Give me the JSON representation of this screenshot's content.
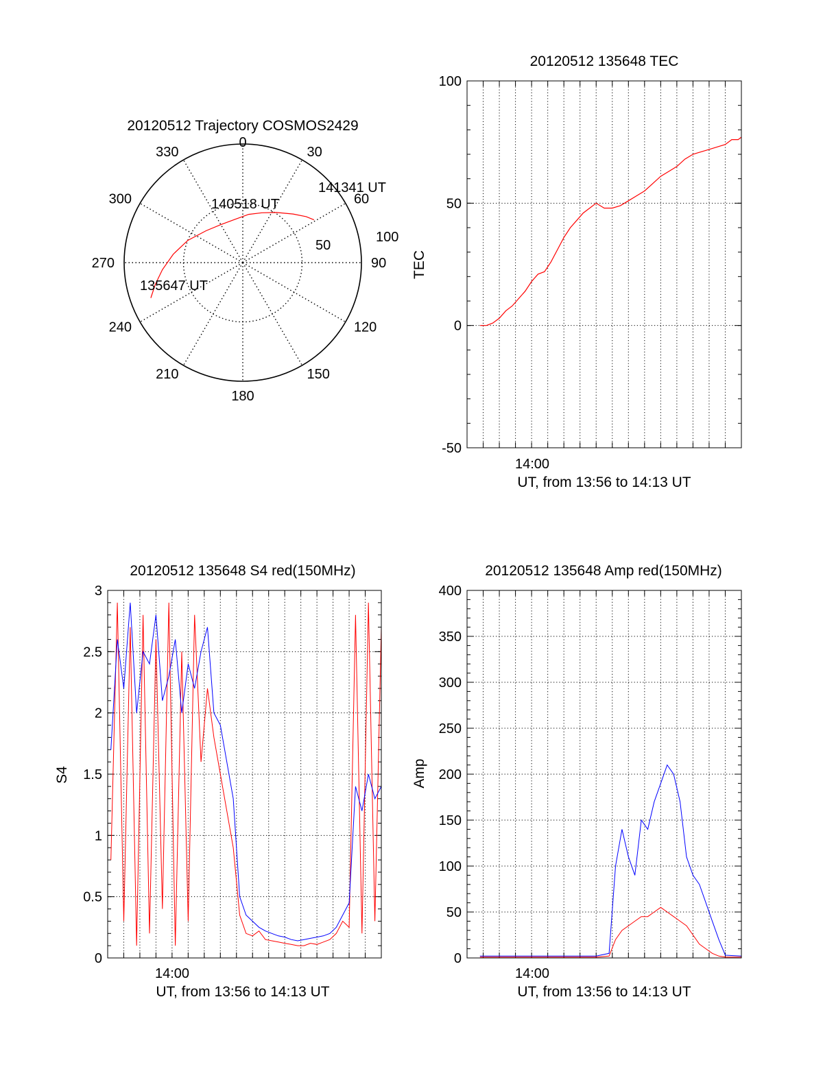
{
  "colors": {
    "red": "#ff0000",
    "blue": "#0000ff",
    "axis": "#000000"
  },
  "chart_data": [
    {
      "type": "polar",
      "id": "trajectory",
      "title": "20120512 Trajectory COSMOS2429",
      "azimuth_labels": [
        "0",
        "30",
        "60",
        "90",
        "120",
        "150",
        "180",
        "210",
        "240",
        "270",
        "300",
        "330"
      ],
      "radial_labels": [
        "50",
        "100"
      ],
      "annotations": [
        "141341 UT",
        "140518 UT",
        "135647 UT"
      ],
      "series": [
        {
          "color": "red",
          "points_az_el": [
            [
              249,
              7
            ],
            [
              256,
              14
            ],
            [
              265,
              22
            ],
            [
              277,
              31
            ],
            [
              292,
              40
            ],
            [
              311,
              49
            ],
            [
              330,
              53
            ],
            [
              349,
              53
            ],
            [
              7,
              49
            ],
            [
              21,
              45
            ],
            [
              34,
              39
            ],
            [
              46,
              31
            ],
            [
              54,
              24
            ],
            [
              59,
              20
            ]
          ]
        }
      ]
    },
    {
      "type": "line",
      "id": "tec",
      "title": "20120512 135648 TEC",
      "ylabel": "TEC",
      "xlabel": "UT, from 13:56 to 14:13 UT",
      "x_tick_labels": [
        "14:00"
      ],
      "xlim": [
        "13:56",
        "14:13"
      ],
      "ylim": [
        -50,
        100
      ],
      "y_ticks": [
        -50,
        0,
        50,
        100
      ],
      "series": [
        {
          "color": "red",
          "x_minutes_after_1356": [
            0.8,
            1.2,
            1.6,
            2.0,
            2.4,
            2.8,
            3.2,
            3.6,
            4.0,
            4.4,
            4.8,
            5.2,
            5.6,
            6.0,
            6.4,
            6.8,
            7.2,
            7.6,
            8.0,
            8.5,
            9.0,
            9.5,
            10.0,
            10.5,
            11.0,
            11.5,
            12.0,
            12.5,
            13.0,
            13.5,
            14.0,
            14.5,
            15.0,
            15.5,
            16.0,
            16.4,
            16.8,
            17.0
          ],
          "values": [
            0,
            0,
            1,
            3,
            6,
            8,
            11,
            14,
            18,
            21,
            22,
            26,
            31,
            36,
            40,
            43,
            46,
            48,
            50,
            48,
            48,
            49,
            51,
            53,
            55,
            58,
            61,
            63,
            65,
            68,
            70,
            71,
            72,
            73,
            74,
            76,
            76,
            77
          ]
        }
      ]
    },
    {
      "type": "line",
      "id": "s4",
      "title": "20120512 135648 S4 red(150MHz)",
      "ylabel": "S4",
      "xlabel": "UT, from 13:56 to 14:13 UT",
      "x_tick_labels": [
        "14:00"
      ],
      "xlim": [
        "13:56",
        "14:13"
      ],
      "ylim": [
        0,
        3
      ],
      "y_ticks": [
        0,
        0.5,
        1,
        1.5,
        2,
        2.5,
        3
      ],
      "series": [
        {
          "color": "red",
          "x_minutes_after_1356": [
            0.2,
            0.6,
            1.0,
            1.4,
            1.8,
            2.2,
            2.6,
            3.0,
            3.4,
            3.8,
            4.2,
            4.6,
            5.0,
            5.4,
            5.8,
            6.2,
            6.6,
            7.0,
            7.4,
            7.8,
            8.2,
            8.6,
            9.0,
            9.4,
            9.8,
            10.2,
            10.6,
            11.0,
            11.4,
            11.8,
            12.2,
            12.6,
            13.0,
            13.4,
            13.8,
            14.2,
            14.6,
            15.0,
            15.4,
            15.8,
            16.2,
            16.6,
            17.0
          ],
          "values": [
            0.8,
            2.9,
            0.3,
            2.7,
            0.1,
            2.8,
            0.2,
            2.6,
            0.4,
            2.9,
            0.1,
            2.5,
            0.3,
            2.8,
            1.6,
            2.2,
            1.8,
            1.5,
            1.2,
            0.9,
            0.35,
            0.2,
            0.18,
            0.22,
            0.15,
            0.14,
            0.13,
            0.12,
            0.11,
            0.1,
            0.1,
            0.12,
            0.11,
            0.13,
            0.15,
            0.2,
            0.3,
            0.25,
            2.8,
            0.2,
            2.9,
            0.3,
            2.7
          ]
        },
        {
          "color": "blue",
          "x_minutes_after_1356": [
            0.2,
            0.6,
            1.0,
            1.4,
            1.8,
            2.2,
            2.6,
            3.0,
            3.4,
            3.8,
            4.2,
            4.6,
            5.0,
            5.4,
            5.8,
            6.2,
            6.6,
            7.0,
            7.4,
            7.8,
            8.2,
            8.6,
            9.0,
            9.4,
            9.8,
            10.2,
            10.6,
            11.0,
            11.4,
            11.8,
            12.2,
            12.6,
            13.0,
            13.4,
            13.8,
            14.2,
            14.6,
            15.0,
            15.4,
            15.8,
            16.2,
            16.6,
            17.0
          ],
          "values": [
            1.7,
            2.6,
            2.2,
            2.9,
            2.0,
            2.5,
            2.4,
            2.8,
            2.1,
            2.3,
            2.6,
            2.0,
            2.4,
            2.2,
            2.5,
            2.7,
            2.0,
            1.9,
            1.6,
            1.3,
            0.5,
            0.35,
            0.3,
            0.25,
            0.22,
            0.2,
            0.18,
            0.17,
            0.15,
            0.14,
            0.15,
            0.16,
            0.17,
            0.18,
            0.2,
            0.25,
            0.35,
            0.45,
            1.4,
            1.2,
            1.5,
            1.3,
            1.4
          ]
        }
      ]
    },
    {
      "type": "line",
      "id": "amp",
      "title": "20120512 135648 Amp red(150MHz)",
      "ylabel": "Amp",
      "xlabel": "UT, from 13:56 to 14:13 UT",
      "x_tick_labels": [
        "14:00"
      ],
      "xlim": [
        "13:56",
        "14:13"
      ],
      "ylim": [
        0,
        400
      ],
      "y_ticks": [
        0,
        50,
        100,
        150,
        200,
        250,
        300,
        350,
        400
      ],
      "series": [
        {
          "color": "red",
          "x_minutes_after_1356": [
            0.8,
            2.0,
            4.0,
            6.0,
            8.0,
            8.8,
            9.2,
            9.6,
            10.0,
            10.4,
            10.8,
            11.2,
            11.6,
            12.0,
            12.4,
            12.8,
            13.2,
            13.6,
            14.0,
            14.4,
            14.8,
            15.2,
            15.6,
            16.0,
            17.0
          ],
          "values": [
            1,
            1,
            1,
            1,
            1,
            2,
            20,
            30,
            35,
            40,
            45,
            45,
            50,
            55,
            50,
            45,
            40,
            35,
            25,
            15,
            10,
            5,
            2,
            1,
            1
          ]
        },
        {
          "color": "blue",
          "x_minutes_after_1356": [
            0.8,
            2.0,
            4.0,
            6.0,
            8.0,
            8.8,
            9.2,
            9.6,
            10.0,
            10.4,
            10.8,
            11.2,
            11.6,
            12.0,
            12.4,
            12.8,
            13.2,
            13.6,
            14.0,
            14.4,
            14.8,
            15.2,
            15.6,
            16.0,
            17.0
          ],
          "values": [
            2,
            2,
            2,
            2,
            2,
            5,
            100,
            140,
            110,
            90,
            150,
            140,
            170,
            190,
            210,
            200,
            170,
            110,
            90,
            80,
            60,
            40,
            20,
            3,
            2
          ]
        }
      ]
    }
  ]
}
